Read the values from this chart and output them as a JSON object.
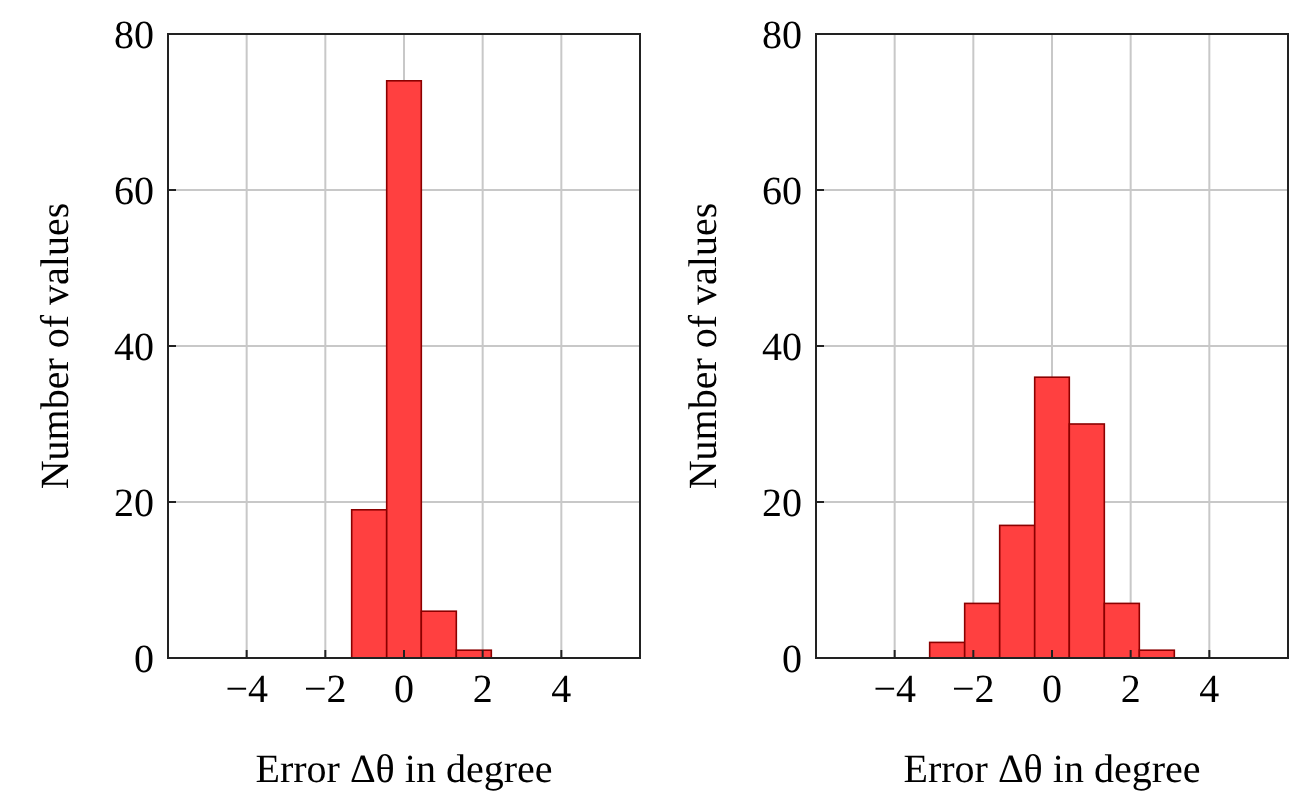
{
  "chart_data": [
    {
      "type": "histogram",
      "xlabel": "Error Δθ in degree",
      "ylabel": "Number of values",
      "bins": [
        -4,
        -3.11,
        -2.22,
        -1.33,
        -0.44,
        0.44,
        1.33,
        2.22,
        3.11,
        4
      ],
      "values": [
        0,
        0,
        0,
        19,
        74,
        6,
        1,
        0,
        0
      ],
      "color": "#ff4040",
      "xlim": [
        -6,
        6
      ],
      "ylim": [
        0,
        80
      ],
      "xticks": [
        -4,
        -2,
        0,
        2,
        4
      ],
      "yticks": [
        0,
        20,
        40,
        60,
        80
      ],
      "grid": true
    },
    {
      "type": "histogram",
      "xlabel": "Error Δθ in degree",
      "ylabel": "Number of values",
      "bins": [
        -4,
        -3.11,
        -2.22,
        -1.33,
        -0.44,
        0.44,
        1.33,
        2.22,
        3.11,
        4
      ],
      "values": [
        0,
        2,
        7,
        17,
        36,
        30,
        7,
        1,
        0
      ],
      "color": "#ff4040",
      "xlim": [
        -6,
        6
      ],
      "ylim": [
        0,
        80
      ],
      "xticks": [
        -4,
        -2,
        0,
        2,
        4
      ],
      "yticks": [
        0,
        20,
        40,
        60,
        80
      ],
      "grid": true
    }
  ]
}
